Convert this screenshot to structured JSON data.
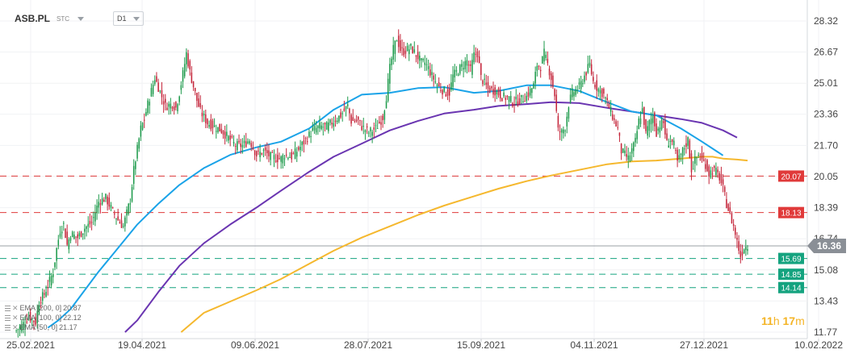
{
  "header": {
    "symbol": "ASB.PL",
    "subtag": "STC",
    "timeframe": "D1"
  },
  "countdown": {
    "hours": "11",
    "hours_unit": "h",
    "minutes": "17",
    "minutes_unit": "m"
  },
  "legend": [
    {
      "label": "EMA [200, 0]",
      "value": "20.87",
      "color": "#f5b82e"
    },
    {
      "label": "EMA [100, 0]",
      "value": "22.12",
      "color": "#6a35b1"
    },
    {
      "label": "EMA [50, 0]",
      "value": "21.17",
      "color": "#1aa3e8"
    }
  ],
  "chart_data": {
    "type": "candlestick",
    "y_ticks": [
      28.32,
      26.67,
      25.01,
      23.36,
      21.7,
      20.05,
      18.39,
      16.74,
      15.08,
      13.43,
      11.77
    ],
    "ylim": [
      11.77,
      28.32
    ],
    "x_ticks": [
      "25.02.2021",
      "19.04.2021",
      "09.06.2021",
      "28.07.2021",
      "15.09.2021",
      "04.11.2021",
      "27.12.2021",
      "10.02.2022"
    ],
    "levels": [
      {
        "price": 20.07,
        "label": "20.07",
        "color": "#e03a3a",
        "style": "resistance"
      },
      {
        "price": 18.13,
        "label": "18.13",
        "color": "#e03a3a",
        "style": "resistance"
      },
      {
        "price": 15.69,
        "label": "15.69",
        "color": "#14a37f",
        "style": "support"
      },
      {
        "price": 14.85,
        "label": "14.85",
        "color": "#14a37f",
        "style": "support"
      },
      {
        "price": 14.14,
        "label": "14.14",
        "color": "#14a37f",
        "style": "support"
      }
    ],
    "current_price": {
      "value": 16.36,
      "label": "16.36",
      "color": "#888888"
    },
    "ema_series": [
      {
        "name": "EMA 200",
        "color": "#f5b82e",
        "points": [
          [
            95,
            11.77
          ],
          [
            108,
            12.8
          ],
          [
            123,
            13.4
          ],
          [
            138,
            14.0
          ],
          [
            152,
            14.6
          ],
          [
            168,
            15.4
          ],
          [
            182,
            16.1
          ],
          [
            198,
            16.8
          ],
          [
            214,
            17.4
          ],
          [
            230,
            18.0
          ],
          [
            245,
            18.5
          ],
          [
            262,
            19.0
          ],
          [
            276,
            19.4
          ],
          [
            292,
            19.8
          ],
          [
            306,
            20.1
          ],
          [
            322,
            20.4
          ],
          [
            338,
            20.7
          ],
          [
            352,
            20.85
          ],
          [
            366,
            20.9
          ],
          [
            380,
            21.0
          ],
          [
            392,
            21.1
          ],
          [
            398,
            21.1
          ],
          [
            404,
            21.0
          ],
          [
            412,
            20.95
          ],
          [
            418,
            20.9
          ]
        ]
      },
      {
        "name": "EMA 100",
        "color": "#6a35b1",
        "points": [
          [
            63,
            11.77
          ],
          [
            70,
            12.4
          ],
          [
            82,
            13.9
          ],
          [
            94,
            15.3
          ],
          [
            108,
            16.5
          ],
          [
            123,
            17.5
          ],
          [
            138,
            18.4
          ],
          [
            152,
            19.3
          ],
          [
            168,
            20.3
          ],
          [
            182,
            21.1
          ],
          [
            198,
            21.8
          ],
          [
            214,
            22.5
          ],
          [
            230,
            23.0
          ],
          [
            245,
            23.4
          ],
          [
            262,
            23.6
          ],
          [
            276,
            23.8
          ],
          [
            292,
            23.9
          ],
          [
            306,
            24.0
          ],
          [
            322,
            23.95
          ],
          [
            338,
            23.7
          ],
          [
            352,
            23.5
          ],
          [
            366,
            23.3
          ],
          [
            380,
            23.1
          ],
          [
            392,
            22.9
          ],
          [
            404,
            22.5
          ],
          [
            412,
            22.12
          ]
        ]
      },
      {
        "name": "EMA 50",
        "color": "#1aa3e8",
        "points": [
          [
            40,
            14.0
          ],
          [
            48,
            15.0
          ],
          [
            56,
            15.9
          ],
          [
            70,
            17.5
          ],
          [
            82,
            18.6
          ],
          [
            94,
            19.6
          ],
          [
            108,
            20.5
          ],
          [
            123,
            21.2
          ],
          [
            138,
            21.6
          ],
          [
            152,
            21.9
          ],
          [
            168,
            22.6
          ],
          [
            182,
            23.6
          ],
          [
            198,
            24.4
          ],
          [
            214,
            24.5
          ],
          [
            230,
            24.75
          ],
          [
            245,
            24.8
          ],
          [
            262,
            24.5
          ],
          [
            276,
            24.6
          ],
          [
            292,
            24.9
          ],
          [
            306,
            24.9
          ],
          [
            322,
            24.6
          ],
          [
            338,
            24.0
          ],
          [
            352,
            23.5
          ],
          [
            366,
            23.3
          ],
          [
            380,
            22.6
          ],
          [
            392,
            21.9
          ],
          [
            404,
            21.17
          ]
        ]
      },
      {
        "name": "EMA 50 (early)",
        "color": "#1aa3e8",
        "points": [
          [
            19,
            12.0
          ],
          [
            25,
            12.4
          ],
          [
            32,
            13.0
          ],
          [
            40,
            14.0
          ]
        ]
      }
    ],
    "candle_path": [
      [
        0,
        11.8
      ],
      [
        4,
        12.1
      ],
      [
        8,
        12.6
      ],
      [
        12,
        12.3
      ],
      [
        14,
        13.4
      ],
      [
        17,
        13.8
      ],
      [
        20,
        14.5
      ],
      [
        22,
        15.0
      ],
      [
        24,
        16.2
      ],
      [
        26,
        17.2
      ],
      [
        28,
        17.5
      ],
      [
        30,
        16.4
      ],
      [
        32,
        17.0
      ],
      [
        36,
        16.8
      ],
      [
        40,
        17.3
      ],
      [
        44,
        17.6
      ],
      [
        48,
        18.7
      ],
      [
        52,
        18.9
      ],
      [
        56,
        18.2
      ],
      [
        60,
        17.6
      ],
      [
        62,
        17.4
      ],
      [
        66,
        18.8
      ],
      [
        68,
        20.4
      ],
      [
        70,
        21.5
      ],
      [
        72,
        22.6
      ],
      [
        74,
        23.1
      ],
      [
        76,
        23.9
      ],
      [
        78,
        24.6
      ],
      [
        80,
        25.3
      ],
      [
        82,
        24.8
      ],
      [
        86,
        23.8
      ],
      [
        90,
        23.9
      ],
      [
        92,
        23.7
      ],
      [
        94,
        24.5
      ],
      [
        96,
        25.5
      ],
      [
        98,
        26.6
      ],
      [
        100,
        25.6
      ],
      [
        104,
        24.1
      ],
      [
        106,
        23.5
      ],
      [
        110,
        22.9
      ],
      [
        114,
        22.7
      ],
      [
        118,
        22.5
      ],
      [
        122,
        22.1
      ],
      [
        126,
        21.7
      ],
      [
        130,
        21.7
      ],
      [
        134,
        22.0
      ],
      [
        138,
        21.2
      ],
      [
        142,
        21.4
      ],
      [
        146,
        21.1
      ],
      [
        150,
        21.0
      ],
      [
        152,
        21.0
      ],
      [
        154,
        21.2
      ],
      [
        158,
        21.1
      ],
      [
        162,
        21.5
      ],
      [
        166,
        22.0
      ],
      [
        170,
        22.5
      ],
      [
        174,
        22.7
      ],
      [
        178,
        22.7
      ],
      [
        182,
        23.0
      ],
      [
        186,
        23.3
      ],
      [
        190,
        23.8
      ],
      [
        192,
        23.0
      ],
      [
        196,
        23.0
      ],
      [
        198,
        22.7
      ],
      [
        202,
        22.4
      ],
      [
        206,
        22.6
      ],
      [
        210,
        23.2
      ],
      [
        212,
        24.3
      ],
      [
        214,
        25.8
      ],
      [
        216,
        26.8
      ],
      [
        218,
        27.4
      ],
      [
        220,
        26.8
      ],
      [
        222,
        26.7
      ],
      [
        226,
        26.9
      ],
      [
        230,
        26.4
      ],
      [
        232,
        26.1
      ],
      [
        234,
        26.1
      ],
      [
        236,
        25.8
      ],
      [
        238,
        25.4
      ],
      [
        242,
        24.8
      ],
      [
        246,
        24.5
      ],
      [
        248,
        24.5
      ],
      [
        250,
        25.4
      ],
      [
        254,
        25.8
      ],
      [
        258,
        26.2
      ],
      [
        260,
        25.7
      ],
      [
        262,
        26.5
      ],
      [
        264,
        26.6
      ],
      [
        266,
        25.3
      ],
      [
        270,
        24.7
      ],
      [
        274,
        24.6
      ],
      [
        278,
        24.3
      ],
      [
        282,
        24.2
      ],
      [
        284,
        24.0
      ],
      [
        288,
        24.1
      ],
      [
        292,
        24.3
      ],
      [
        296,
        24.9
      ],
      [
        298,
        26.0
      ],
      [
        300,
        25.9
      ],
      [
        302,
        26.6
      ],
      [
        304,
        26.0
      ],
      [
        306,
        25.3
      ],
      [
        308,
        24.4
      ],
      [
        310,
        22.5
      ],
      [
        312,
        22.4
      ],
      [
        314,
        22.7
      ],
      [
        316,
        23.9
      ],
      [
        318,
        24.5
      ],
      [
        322,
        24.8
      ],
      [
        324,
        25.2
      ],
      [
        328,
        26.0
      ],
      [
        330,
        25.1
      ],
      [
        332,
        24.8
      ],
      [
        336,
        24.4
      ],
      [
        340,
        23.5
      ],
      [
        342,
        23.0
      ],
      [
        344,
        22.6
      ],
      [
        346,
        21.4
      ],
      [
        350,
        21.0
      ],
      [
        354,
        21.9
      ],
      [
        356,
        23.0
      ],
      [
        358,
        23.6
      ],
      [
        360,
        22.3
      ],
      [
        362,
        22.9
      ],
      [
        364,
        23.3
      ],
      [
        366,
        22.4
      ],
      [
        368,
        22.8
      ],
      [
        370,
        22.9
      ],
      [
        372,
        21.8
      ],
      [
        374,
        22.0
      ],
      [
        376,
        21.7
      ],
      [
        378,
        20.8
      ],
      [
        380,
        21.2
      ],
      [
        382,
        21.6
      ],
      [
        384,
        22.0
      ],
      [
        386,
        20.4
      ],
      [
        388,
        20.9
      ],
      [
        390,
        21.2
      ],
      [
        392,
        20.9
      ],
      [
        394,
        20.7
      ],
      [
        396,
        20.2
      ],
      [
        398,
        20.4
      ],
      [
        400,
        20.3
      ],
      [
        402,
        20.0
      ],
      [
        404,
        19.4
      ],
      [
        406,
        18.6
      ],
      [
        408,
        18.0
      ],
      [
        410,
        17.4
      ],
      [
        412,
        16.6
      ],
      [
        414,
        15.8
      ],
      [
        416,
        16.3
      ],
      [
        418,
        16.36
      ]
    ]
  }
}
